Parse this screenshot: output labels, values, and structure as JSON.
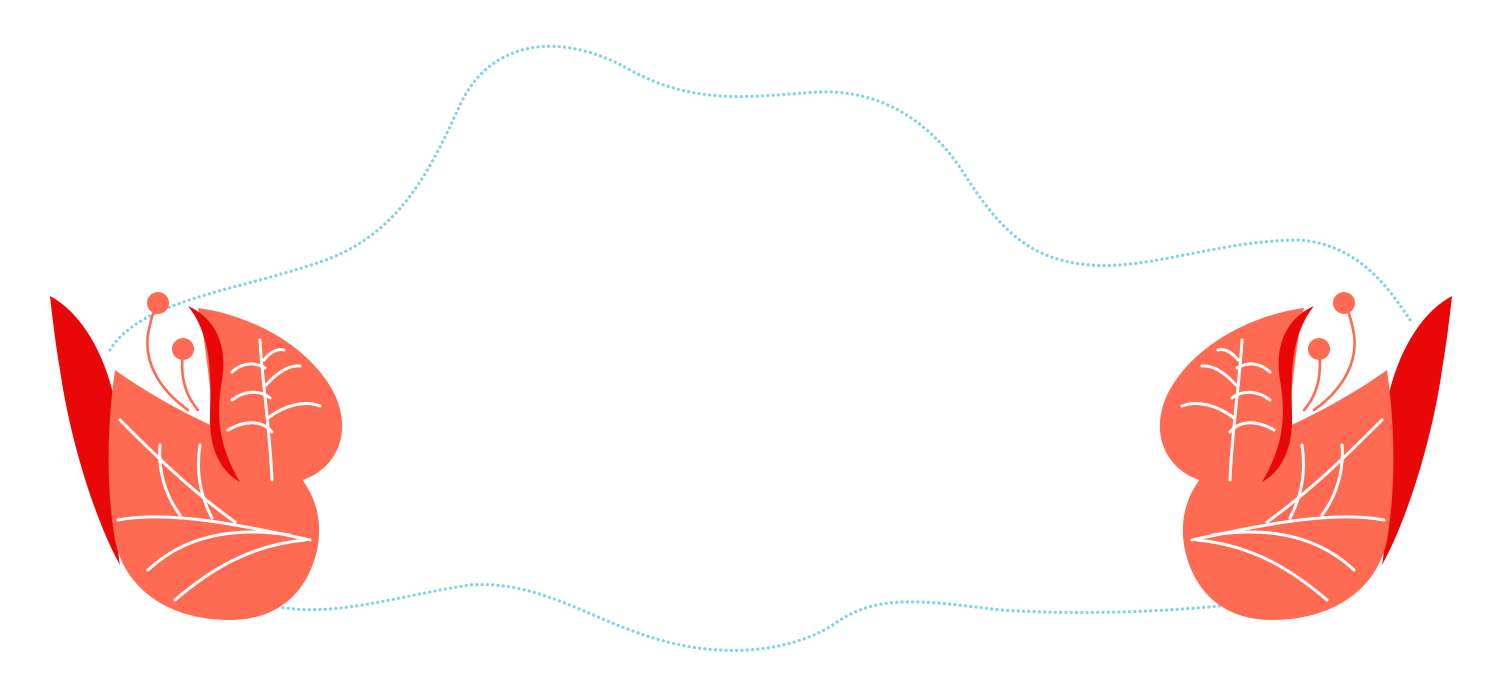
{
  "colors": {
    "background": "#ffffff",
    "frame_dots": "#7fd3ea",
    "petal_salmon": "#ff6a52",
    "petal_red": "#e80808",
    "vein": "#ffffff",
    "stamen": "#ff6a52"
  },
  "decorations": {
    "frame": "dotted-cloud-frame",
    "left_ornament": "tulip-flower-icon",
    "right_ornament": "tulip-flower-icon"
  }
}
